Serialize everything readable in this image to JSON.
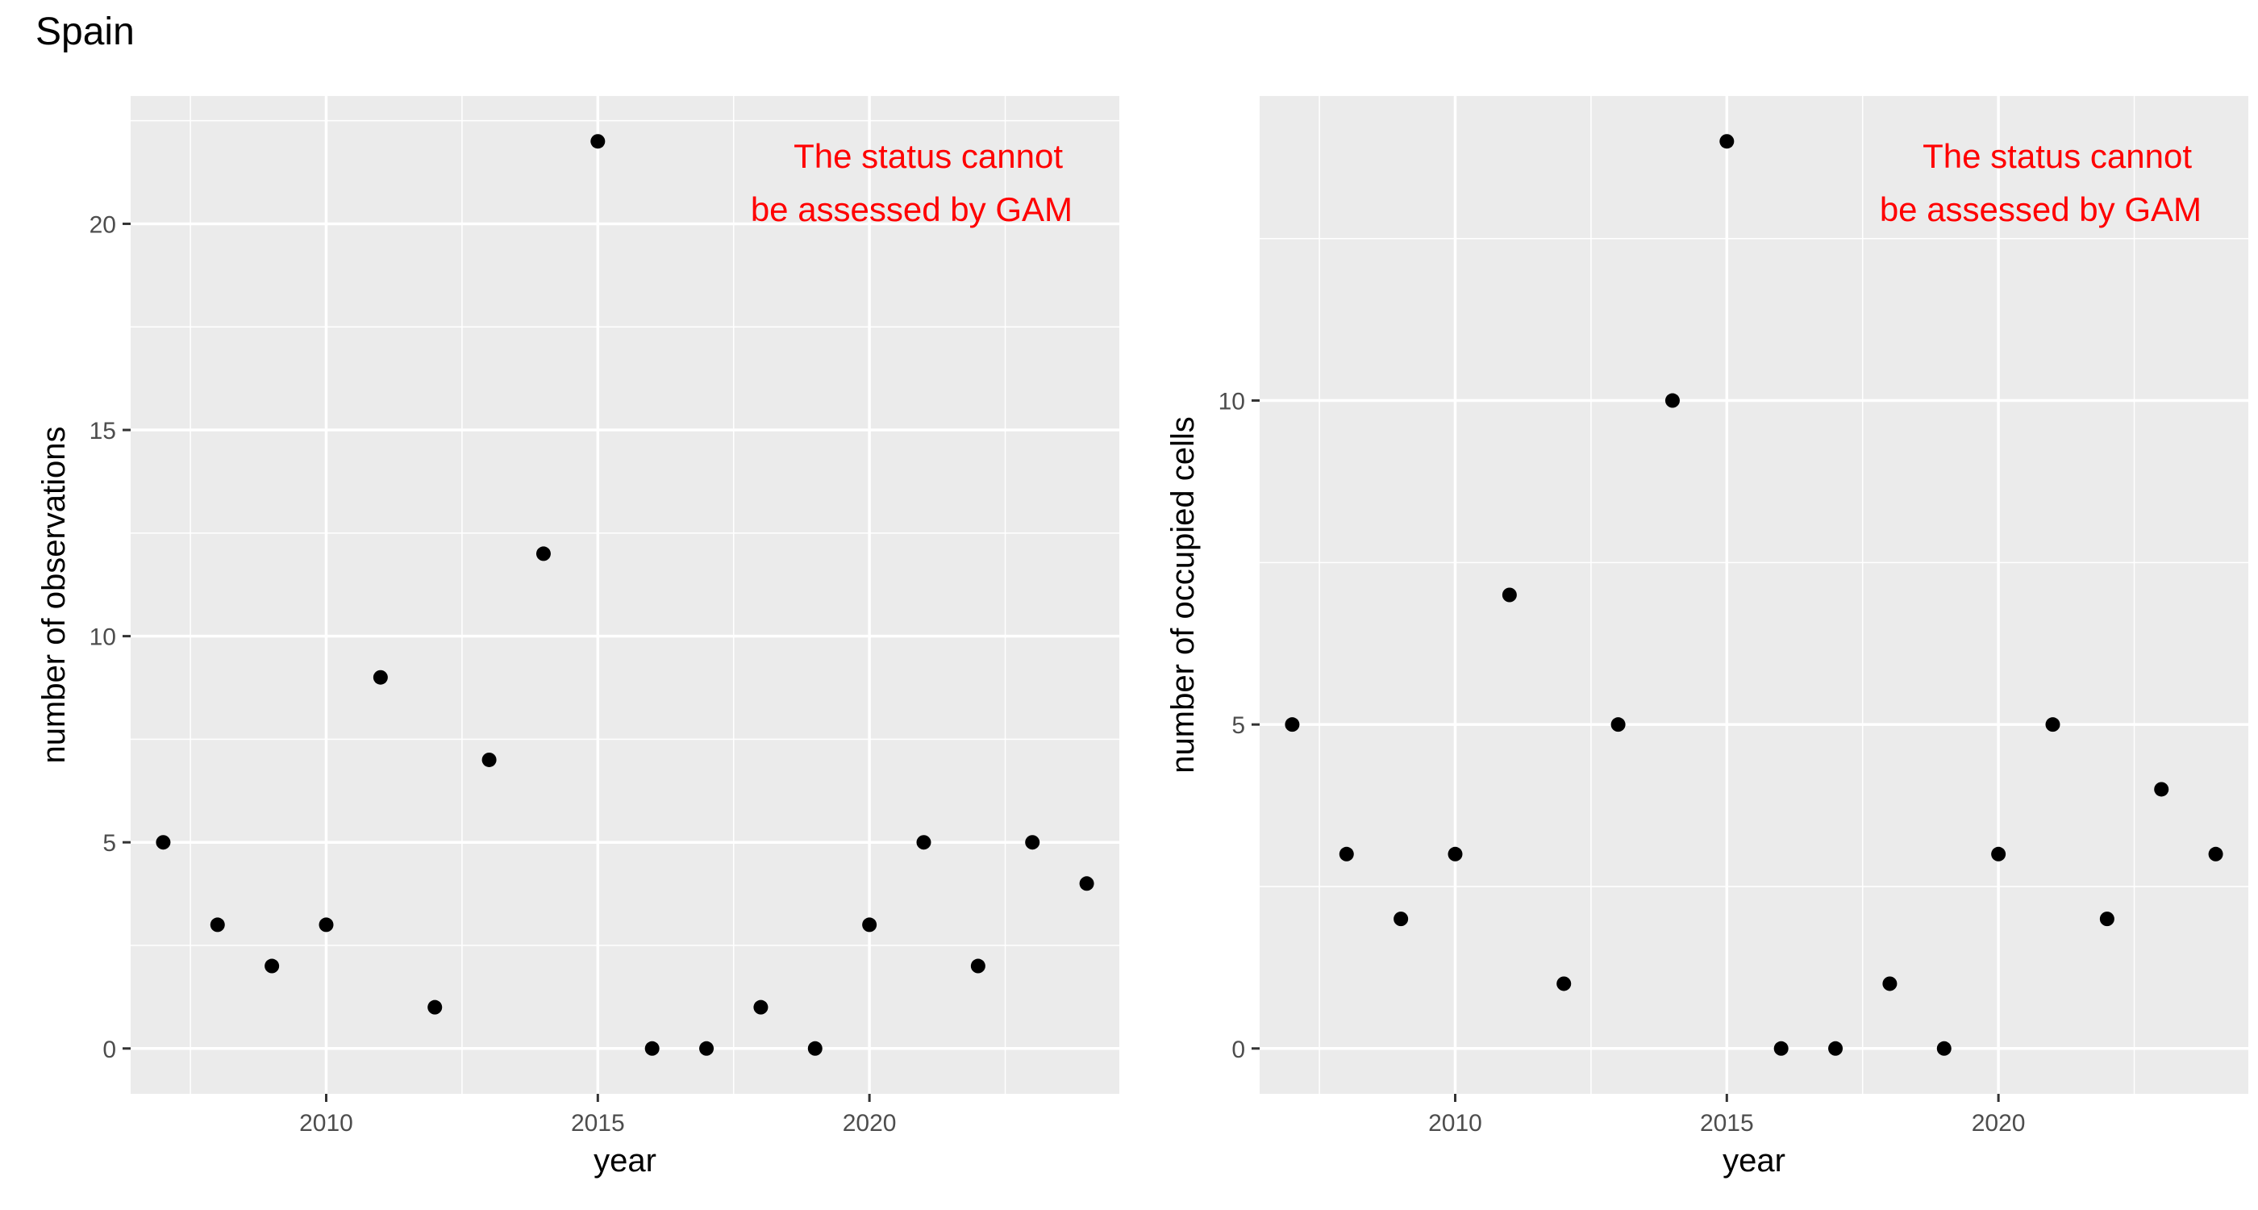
{
  "page": {
    "title": "Spain"
  },
  "chart_data": [
    {
      "type": "scatter",
      "title": "",
      "xlabel": "year",
      "ylabel": "number of observations",
      "xlim": [
        2006.4,
        2024.6
      ],
      "ylim": [
        -1.1,
        23.1
      ],
      "x_ticks": [
        2010,
        2015,
        2020
      ],
      "x_tick_labels": [
        "2010",
        "2015",
        "2020"
      ],
      "y_ticks": [
        0,
        5,
        10,
        15,
        20
      ],
      "y_tick_labels": [
        "0",
        "5",
        "10",
        "15",
        "20"
      ],
      "grid": true,
      "annotation": {
        "lines": [
          "The status cannot",
          "be assessed by GAM"
        ],
        "color": "#ff0000",
        "position": "top-right"
      },
      "x": [
        2007,
        2008,
        2009,
        2010,
        2011,
        2012,
        2013,
        2014,
        2015,
        2016,
        2017,
        2018,
        2019,
        2020,
        2021,
        2022,
        2023,
        2024
      ],
      "values": [
        5,
        3,
        2,
        3,
        9,
        1,
        7,
        12,
        22,
        0,
        0,
        1,
        0,
        3,
        5,
        2,
        5,
        4
      ]
    },
    {
      "type": "scatter",
      "title": "",
      "xlabel": "year",
      "ylabel": "number of occupied cells",
      "xlim": [
        2006.4,
        2024.6
      ],
      "ylim": [
        -0.7,
        14.7
      ],
      "x_ticks": [
        2010,
        2015,
        2020
      ],
      "x_tick_labels": [
        "2010",
        "2015",
        "2020"
      ],
      "y_ticks": [
        0,
        5,
        10
      ],
      "y_tick_labels": [
        "0",
        "5",
        "10"
      ],
      "grid": true,
      "annotation": {
        "lines": [
          "The status cannot",
          "be assessed by GAM"
        ],
        "color": "#ff0000",
        "position": "top-right"
      },
      "x": [
        2007,
        2008,
        2009,
        2010,
        2011,
        2012,
        2013,
        2014,
        2015,
        2016,
        2017,
        2018,
        2019,
        2020,
        2021,
        2022,
        2023,
        2024
      ],
      "values": [
        5,
        3,
        2,
        3,
        7,
        1,
        5,
        10,
        14,
        0,
        0,
        1,
        0,
        3,
        5,
        2,
        4,
        3
      ]
    }
  ],
  "colors": {
    "panel_bg": "#ebebeb",
    "grid": "#ffffff",
    "point": "#000000",
    "annotation": "#ff0000",
    "tick_text": "#4d4d4d"
  }
}
